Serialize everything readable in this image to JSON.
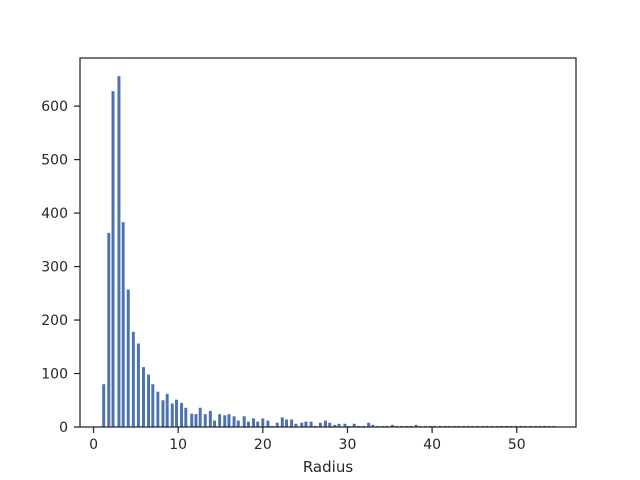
{
  "chart_data": {
    "type": "bar",
    "title": "",
    "xlabel": "Radius",
    "ylabel": "",
    "xlim": [
      -1.6,
      57.0
    ],
    "ylim": [
      0,
      690
    ],
    "xticks": [
      0,
      10,
      20,
      30,
      40,
      50
    ],
    "yticks": [
      0,
      100,
      200,
      300,
      400,
      500,
      600
    ],
    "bar_width": 0.35,
    "bar_color": "#4c72b0",
    "grid": false,
    "legend": "none",
    "x": [
      1.2,
      1.8,
      2.3,
      3.0,
      3.5,
      4.1,
      4.7,
      5.3,
      5.9,
      6.5,
      7.0,
      7.6,
      8.2,
      8.7,
      9.3,
      9.8,
      10.4,
      10.9,
      11.6,
      12.1,
      12.6,
      13.2,
      13.8,
      14.3,
      14.9,
      15.5,
      16.0,
      16.6,
      17.1,
      17.8,
      18.3,
      18.9,
      19.4,
      20.0,
      20.6,
      21.1,
      21.7,
      22.3,
      22.8,
      23.4,
      23.9,
      24.6,
      25.1,
      25.7,
      26.2,
      26.8,
      27.4,
      27.9,
      28.5,
      29.0,
      29.7,
      30.2,
      30.8,
      31.3,
      31.9,
      32.5,
      33.0,
      33.6,
      34.2,
      34.7,
      35.3,
      35.8,
      36.4,
      37.0,
      37.5,
      38.1,
      38.6,
      39.2,
      39.8,
      40.3,
      40.9,
      41.5,
      42.0,
      42.6,
      43.1,
      43.7,
      44.3,
      44.8,
      45.4,
      46.0,
      46.5,
      47.1,
      47.7,
      48.2,
      48.8,
      49.3,
      49.9,
      50.5,
      51.0,
      51.6,
      52.2,
      52.7,
      53.3,
      53.8,
      54.4
    ],
    "values": [
      80,
      363,
      628,
      656,
      383,
      257,
      178,
      156,
      112,
      98,
      80,
      66,
      50,
      62,
      44,
      51,
      45,
      36,
      25,
      24,
      36,
      24,
      30,
      12,
      24,
      22,
      24,
      20,
      12,
      20,
      10,
      16,
      10,
      16,
      12,
      2,
      8,
      18,
      14,
      14,
      6,
      8,
      10,
      10,
      2,
      8,
      12,
      8,
      4,
      6,
      6,
      2,
      6,
      2,
      2,
      8,
      4,
      2,
      2,
      2,
      4,
      2,
      2,
      2,
      2,
      4,
      2,
      2,
      2,
      2,
      2,
      2,
      2,
      2,
      2,
      2,
      2,
      2,
      2,
      2,
      2,
      2,
      2,
      2,
      2,
      2,
      2,
      2,
      2,
      2,
      2,
      2,
      2,
      2,
      2
    ]
  }
}
